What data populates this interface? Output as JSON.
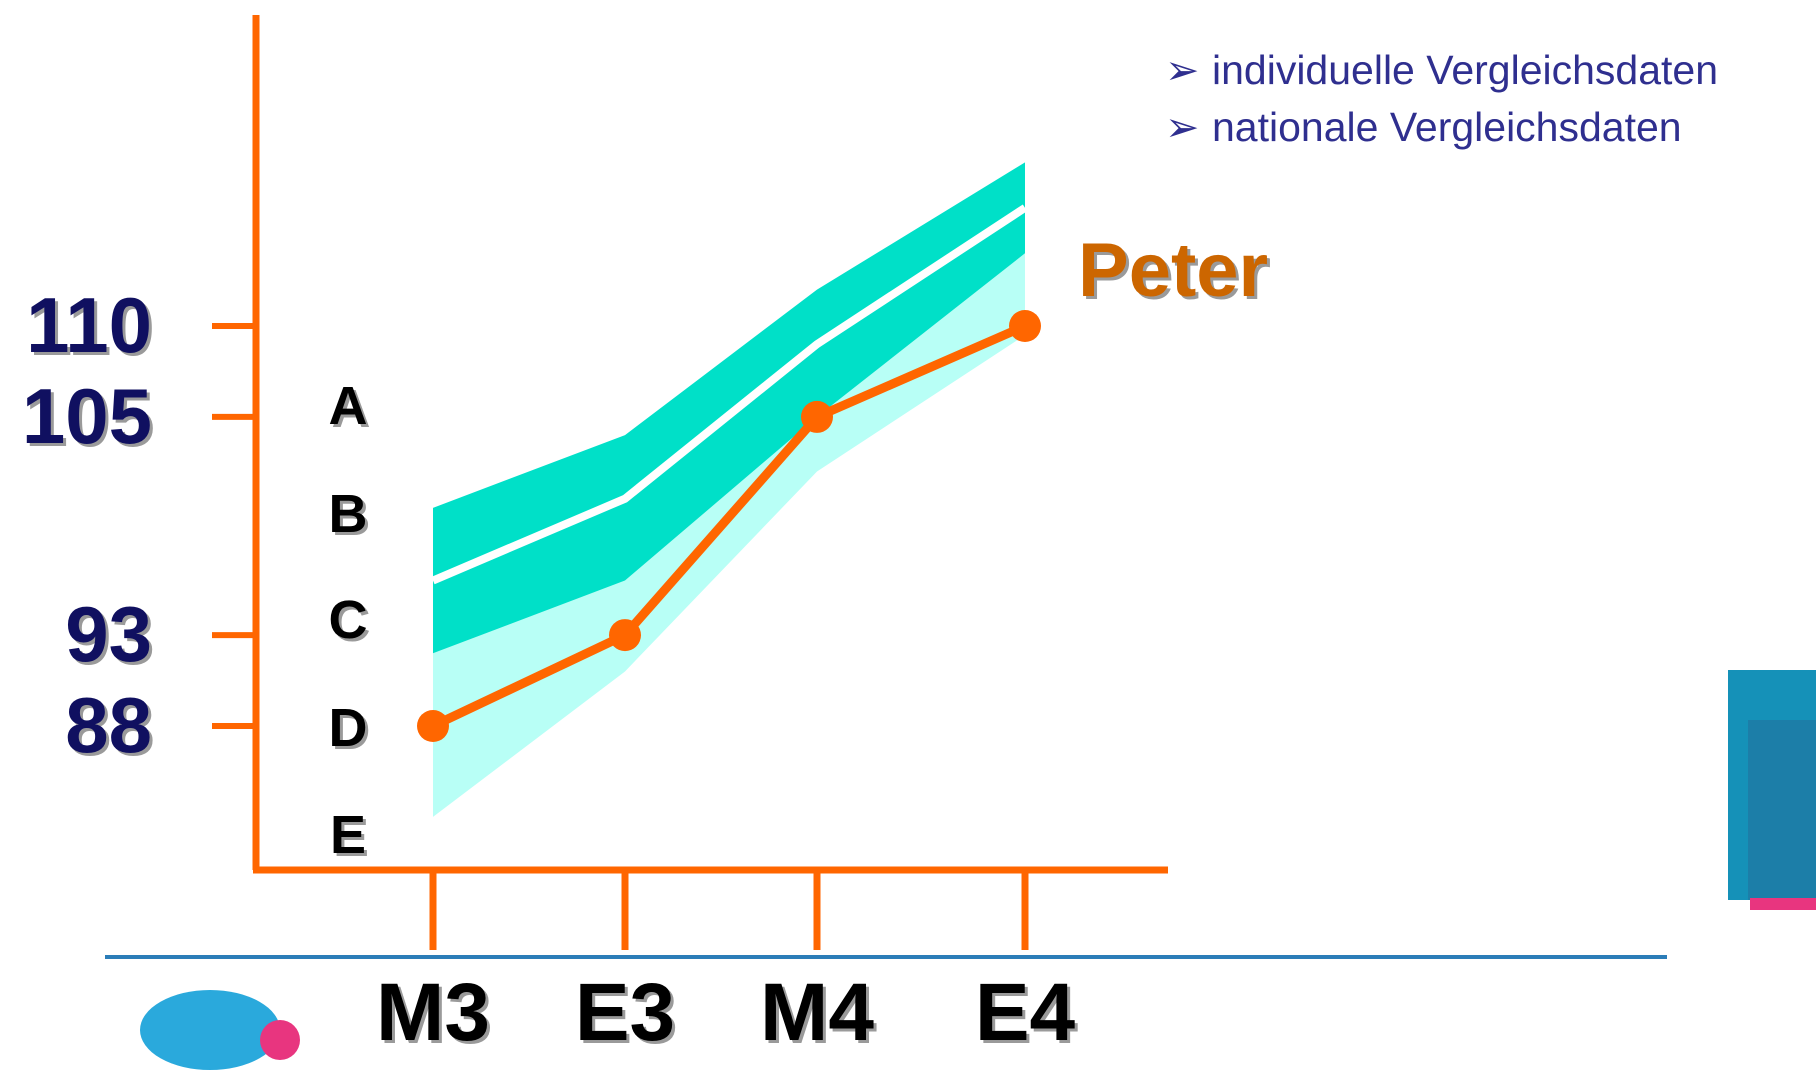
{
  "legend_items": [
    {
      "arrow": "➢",
      "text": "individuelle Vergleichsdaten"
    },
    {
      "arrow": "➢",
      "text": "nationale Vergleichsdaten"
    }
  ],
  "colors": {
    "axis": "#ff6600",
    "series": "#ff6600",
    "series_label": "#cc6600",
    "y_label": "#101060",
    "band_dark": "#00e0c8",
    "band_light": "#b8fff6",
    "median": "#ffffff",
    "grade_text": "#000000"
  },
  "chart_data": {
    "type": "line",
    "categories": [
      "M3",
      "E3",
      "M4",
      "E4"
    ],
    "y_ticks": [
      88,
      93,
      105,
      110
    ],
    "grade_labels": [
      "A",
      "B",
      "C",
      "D",
      "E"
    ],
    "series": [
      {
        "name": "Peter",
        "values": [
          88,
          93,
          105,
          110
        ]
      }
    ],
    "bands": {
      "dark_upper": [
        100,
        104,
        112,
        119
      ],
      "median": [
        96,
        100.5,
        109,
        116.5
      ],
      "dark_lower": [
        92,
        96,
        105,
        114
      ],
      "light_lower": [
        83,
        91,
        102,
        109.5
      ]
    },
    "ylim": [
      80,
      125
    ],
    "grid": false
  }
}
